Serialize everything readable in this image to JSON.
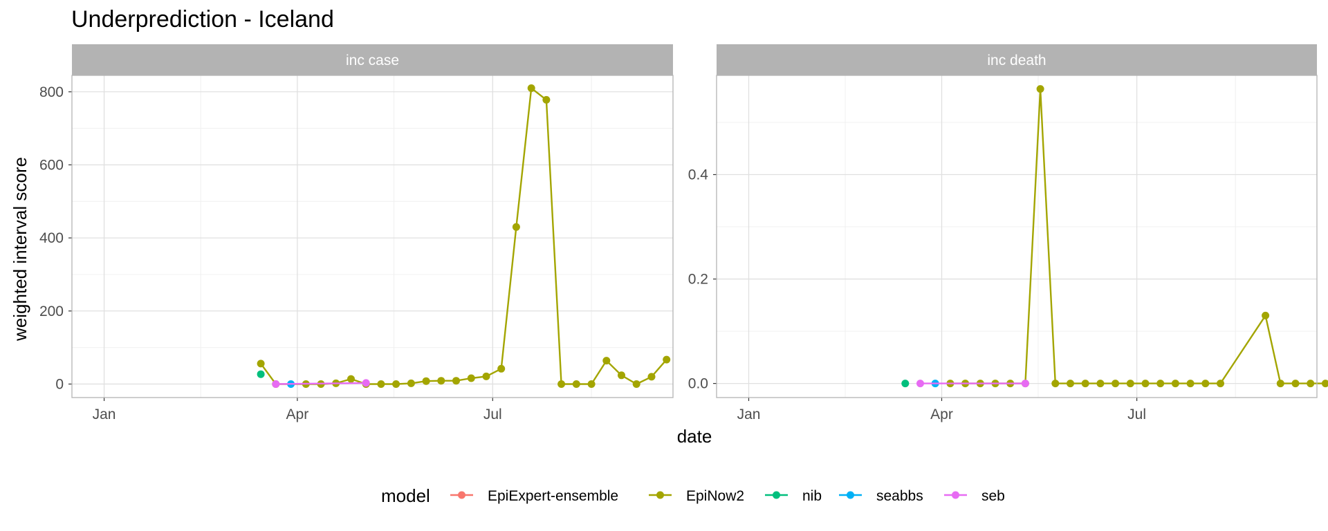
{
  "chart_data": {
    "type": "line",
    "title": "Underprediction - Iceland",
    "xlabel": "date",
    "ylabel": "weighted interval score",
    "legend": {
      "title": "model",
      "placement": "bottom",
      "entries": [
        {
          "name": "EpiExpert-ensemble",
          "color": "#F8766D"
        },
        {
          "name": "EpiNow2",
          "color": "#A3A500"
        },
        {
          "name": "nib",
          "color": "#00BF7D"
        },
        {
          "name": "seabbs",
          "color": "#00B0F6"
        },
        {
          "name": "seb",
          "color": "#E76BF3"
        }
      ]
    },
    "x_ticks": [
      {
        "label": "Jan",
        "date": "2021-01-01"
      },
      {
        "label": "Apr",
        "date": "2021-04-01"
      },
      {
        "label": "Jul",
        "date": "2021-07-01"
      }
    ],
    "xlim": [
      "2020-12-17",
      "2021-09-23"
    ],
    "panels": [
      {
        "strip": "inc case",
        "ylim": [
          -37,
          845
        ],
        "y_ticks": [
          0,
          200,
          400,
          600,
          800
        ],
        "series": [
          {
            "name": "EpiNow2",
            "color": "#A3A500",
            "points": [
              [
                "2021-03-15",
                56
              ],
              [
                "2021-03-22",
                0
              ],
              [
                "2021-04-05",
                0
              ],
              [
                "2021-04-12",
                0
              ],
              [
                "2021-04-19",
                2
              ],
              [
                "2021-04-26",
                14
              ],
              [
                "2021-05-03",
                0
              ],
              [
                "2021-05-10",
                0
              ],
              [
                "2021-05-17",
                0
              ],
              [
                "2021-05-24",
                2
              ],
              [
                "2021-05-31",
                8
              ],
              [
                "2021-06-07",
                9
              ],
              [
                "2021-06-14",
                9
              ],
              [
                "2021-06-21",
                16
              ],
              [
                "2021-06-28",
                21
              ],
              [
                "2021-07-05",
                42
              ],
              [
                "2021-07-12",
                430
              ],
              [
                "2021-07-19",
                810
              ],
              [
                "2021-07-26",
                778
              ],
              [
                "2021-08-02",
                0
              ],
              [
                "2021-08-09",
                0
              ],
              [
                "2021-08-16",
                0
              ],
              [
                "2021-08-23",
                64
              ],
              [
                "2021-08-30",
                24
              ],
              [
                "2021-09-06",
                0
              ],
              [
                "2021-09-13",
                20
              ],
              [
                "2021-09-20",
                67
              ]
            ]
          },
          {
            "name": "nib",
            "color": "#00BF7D",
            "points": [
              [
                "2021-03-15",
                27
              ]
            ]
          },
          {
            "name": "seabbs",
            "color": "#00B0F6",
            "points": [
              [
                "2021-03-29",
                0
              ]
            ]
          },
          {
            "name": "seb",
            "color": "#E76BF3",
            "points": [
              [
                "2021-03-22",
                0
              ],
              [
                "2021-05-03",
                3
              ]
            ]
          }
        ]
      },
      {
        "strip": "inc death",
        "ylim": [
          -0.027,
          0.59
        ],
        "y_ticks": [
          0.0,
          0.2,
          0.4
        ],
        "y_tick_labels": [
          "0.0",
          "0.2",
          "0.4"
        ],
        "series": [
          {
            "name": "EpiNow2",
            "color": "#A3A500",
            "points": [
              [
                "2021-04-05",
                0
              ],
              [
                "2021-04-12",
                0
              ],
              [
                "2021-04-19",
                0
              ],
              [
                "2021-04-26",
                0
              ],
              [
                "2021-05-03",
                0
              ],
              [
                "2021-05-10",
                0
              ],
              [
                "2021-05-17",
                0.564
              ],
              [
                "2021-05-24",
                0
              ],
              [
                "2021-05-31",
                0
              ],
              [
                "2021-06-07",
                0
              ],
              [
                "2021-06-14",
                0
              ],
              [
                "2021-06-21",
                0
              ],
              [
                "2021-06-28",
                0
              ],
              [
                "2021-07-05",
                0
              ],
              [
                "2021-07-12",
                0
              ],
              [
                "2021-07-19",
                0
              ],
              [
                "2021-07-26",
                0
              ],
              [
                "2021-08-02",
                0
              ],
              [
                "2021-08-09",
                0
              ],
              [
                "2021-08-30",
                0.13
              ],
              [
                "2021-09-06",
                0
              ],
              [
                "2021-09-13",
                0
              ],
              [
                "2021-09-20",
                0
              ],
              [
                "2021-09-27",
                0
              ]
            ]
          },
          {
            "name": "nib",
            "color": "#00BF7D",
            "points": [
              [
                "2021-03-15",
                0
              ]
            ]
          },
          {
            "name": "seabbs",
            "color": "#00B0F6",
            "points": [
              [
                "2021-03-29",
                0
              ]
            ]
          },
          {
            "name": "seb",
            "color": "#E76BF3",
            "points": [
              [
                "2021-03-22",
                0
              ],
              [
                "2021-05-10",
                0
              ]
            ]
          }
        ]
      }
    ]
  }
}
